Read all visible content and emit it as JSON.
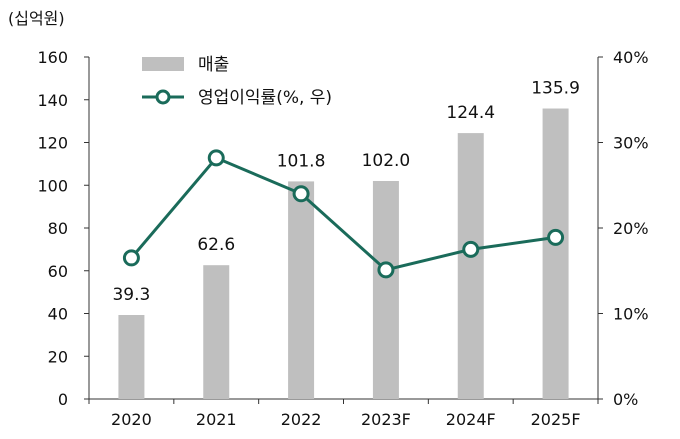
{
  "chart_data": {
    "type": "bar",
    "unit_label": "(십억원)",
    "categories": [
      "2020",
      "2021",
      "2022",
      "2023F",
      "2024F",
      "2025F"
    ],
    "series": [
      {
        "name": "매출",
        "type": "bar",
        "axis": "left",
        "values": [
          39.3,
          62.6,
          101.8,
          102.0,
          124.4,
          135.9
        ],
        "labels": [
          "39.3",
          "62.6",
          "101.8",
          "102.0",
          "124.4",
          "135.9"
        ],
        "color": "#bfbfbf"
      },
      {
        "name": "영업이익률(%, 우)",
        "type": "line",
        "axis": "right",
        "values": [
          16.5,
          28.2,
          24.0,
          15.1,
          17.5,
          18.9
        ],
        "color": "#1a6b5a"
      }
    ],
    "y_left": {
      "ylim": [
        0,
        160
      ],
      "ticks": [
        "0",
        "20",
        "40",
        "60",
        "80",
        "100",
        "120",
        "140",
        "160"
      ]
    },
    "y_right": {
      "ylim": [
        0,
        40
      ],
      "ticks": [
        "0%",
        "10%",
        "20%",
        "30%",
        "40%"
      ]
    },
    "grid": false,
    "legend_position": "top-left"
  }
}
